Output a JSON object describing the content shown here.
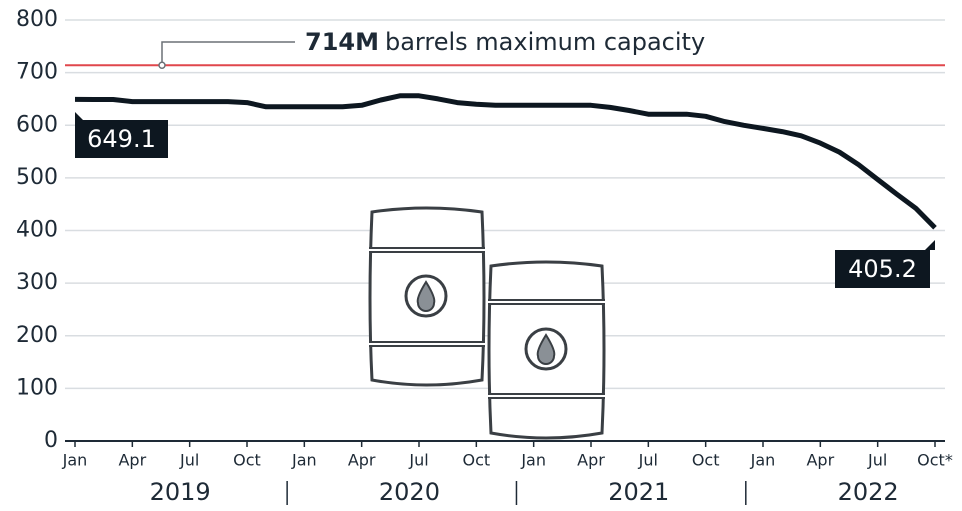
{
  "chart_data": {
    "type": "line",
    "categories": [
      "Jan",
      null,
      null,
      "Apr",
      null,
      null,
      "Jul",
      null,
      null,
      "Oct",
      null,
      null,
      "Jan",
      null,
      null,
      "Apr",
      null,
      null,
      "Jul",
      null,
      null,
      "Oct",
      null,
      null,
      "Jan",
      null,
      null,
      "Apr",
      null,
      null,
      "Jul",
      null,
      null,
      "Oct",
      null,
      null,
      "Jan",
      null,
      null,
      "Apr",
      null,
      null,
      "Jul",
      null,
      null,
      "Oct*"
    ],
    "x_groups": [
      "2019",
      "2020",
      "2021",
      "2022"
    ],
    "values": [
      649.1,
      649,
      649,
      645,
      645,
      645,
      645,
      645,
      645,
      643,
      635,
      635,
      635,
      635,
      635,
      638,
      648,
      656,
      656,
      650,
      643,
      640,
      638,
      638,
      638,
      638,
      638,
      638,
      634,
      628,
      621,
      621,
      621,
      617,
      607,
      600,
      594,
      588,
      580,
      566,
      549,
      525,
      497,
      469,
      442,
      405.2
    ],
    "color": "#0d1720",
    "ylim": [
      0,
      800
    ],
    "yticks": [
      0,
      100,
      200,
      300,
      400,
      500,
      600,
      700,
      800
    ],
    "grid": true,
    "reference_line": {
      "value": 714,
      "label_bold": "714M",
      "label": "barrels maximum capacity",
      "color": "#e0474c"
    }
  }
}
